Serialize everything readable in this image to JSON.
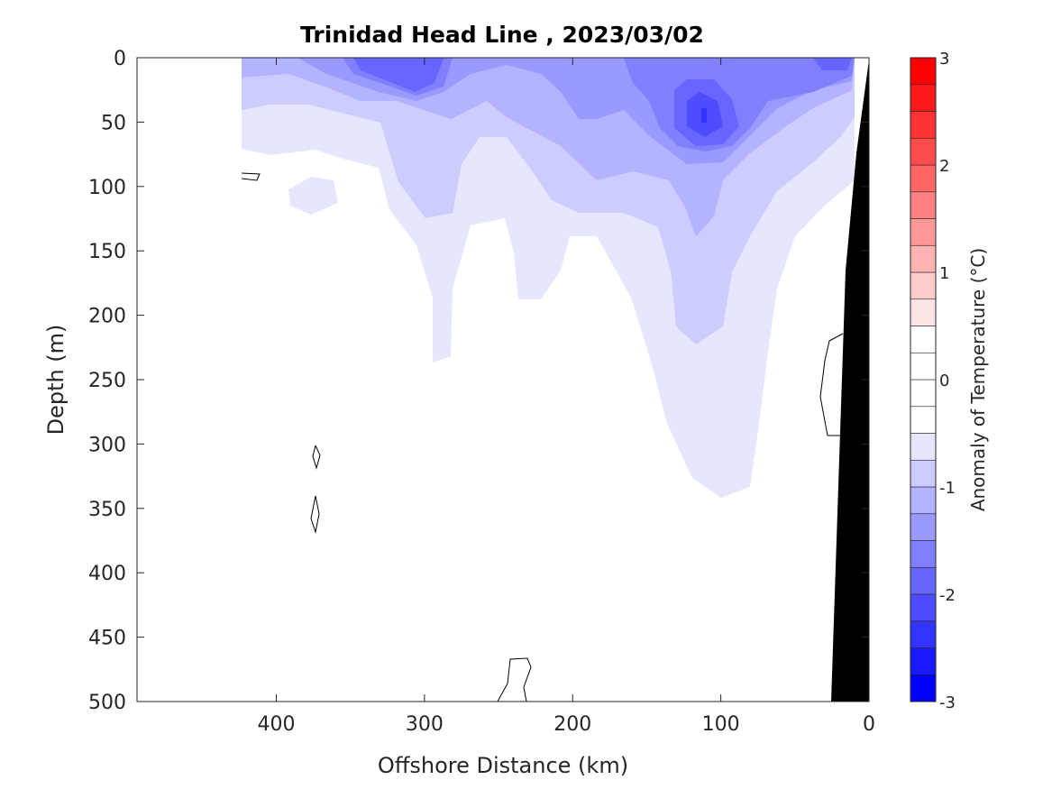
{
  "chart_data": {
    "type": "heatmap",
    "subtype": "filled-contour",
    "title": "Trinidad Head Line , 2023/03/02",
    "xlabel": "Offshore Distance (km)",
    "ylabel": "Depth (m)",
    "xlim": [
      494,
      0
    ],
    "ylim": [
      500,
      0
    ],
    "x_reversed": true,
    "y_reversed": true,
    "xticks": [
      400,
      300,
      200,
      100,
      0
    ],
    "yticks": [
      0,
      50,
      100,
      150,
      200,
      250,
      300,
      350,
      400,
      450,
      500
    ],
    "grid": false,
    "colorbar": {
      "label": "Anomaly of Temperature (°C)",
      "range": [
        -3,
        3
      ],
      "step": 0.25,
      "ticks": [
        3,
        2,
        1,
        0,
        -1,
        -2,
        -3
      ],
      "colors": [
        "#0000ff",
        "#1a1aff",
        "#3333ff",
        "#4d4dff",
        "#6666ff",
        "#8080ff",
        "#9999ff",
        "#b3b3ff",
        "#ccccff",
        "#e6e6ff",
        "#ffffff",
        "#ffffff",
        "#ffffff",
        "#ffffff",
        "#ffe6e6",
        "#ffcccc",
        "#ffb3b3",
        "#ff9999",
        "#ff8080",
        "#ff6666",
        "#ff4d4d",
        "#ff3333",
        "#ff1a1a",
        "#ff0000"
      ]
    },
    "data_extent_km": [
      423,
      0
    ],
    "observed_anomaly_range": [
      -2.5,
      0.1
    ],
    "bathymetry_color": "#000000",
    "features": [
      {
        "description": "strongest cold anomaly near 110 km, 40-50 m",
        "value_approx": -2.5
      },
      {
        "description": "cold anomaly near surface 290-340 km",
        "value_approx": -1.75
      },
      {
        "description": "near-zero anomaly at depth below 300 m from 120-390 km",
        "value_approx": 0
      }
    ]
  }
}
